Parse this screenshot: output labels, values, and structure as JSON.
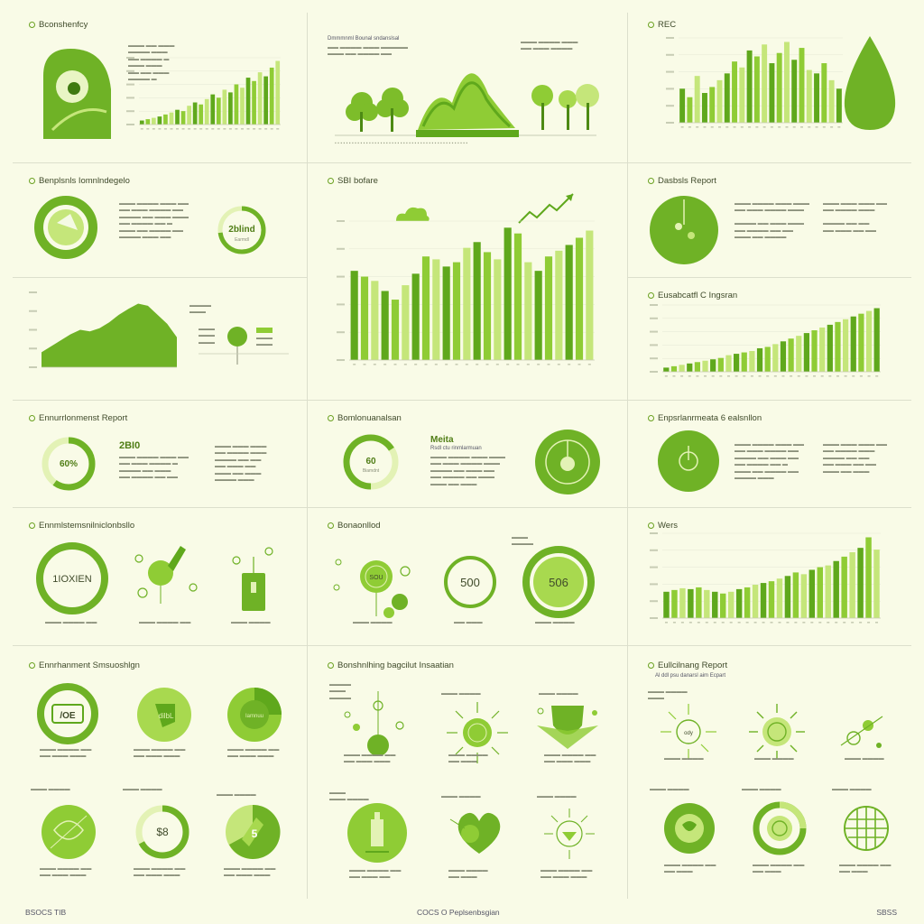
{
  "palette": {
    "dark": "#5fa81c",
    "mid": "#8fcc35",
    "light": "#c5e67a",
    "pale": "#e3f2b5",
    "bg": "#f9fbe7"
  },
  "titles": {
    "p1": "Bconshenfcy",
    "p3": "REC",
    "p4": "Benplsnls Iomnlndegelo",
    "p5": "SBI bofare",
    "p6": "Dasbsls Report",
    "p9": "Eusabcatfl C Ingsran",
    "p10": "Ennurrlonmenst Report",
    "p11": "Bomlonuanalsan",
    "p12": "Enpsrlanrmeata 6 ealsnllon",
    "p13": "Ennmlstemsnilniclonbsllo",
    "p14": "Bonaonllod",
    "p15": "Wers",
    "p16": "Ennrhanment Smsuoshlgn",
    "p17": "Bonshnlhing bagcilut Insaatian",
    "p18": "Eullcilnang Report"
  },
  "texts": {
    "p2_header": "Dmmmnml Bounal sndanslsal",
    "p10_num": "2BI0",
    "p10_ring": "60%",
    "p11_meta": "Meita",
    "p11_sub": "Rsdl ctu rinmlarmuan",
    "p11_ring": "60",
    "p11_ring_sub": "Biamdnt",
    "p4_ring": "2blind",
    "p4_ring_sub": "Earmdl",
    "p13_ring": "1IOXIEN",
    "p14_c1": "SOU",
    "p14_c2": "500",
    "p14_c3": "506",
    "p16_c1": "/OE",
    "p16_c2": "dilbL",
    "p16_c3": "Iamnuu",
    "p16_c4": "$8",
    "p16_c5": "5",
    "p18_sub": "Al ddl psu danarsl aim Ecpart",
    "p18_c1": "ody"
  },
  "footer": {
    "left": "BSOCS TIB",
    "center": "COCS O Peplsenbsgian",
    "right": "SBSS"
  },
  "chart_data": [
    {
      "id": "p1",
      "type": "bar",
      "values": [
        6,
        8,
        10,
        12,
        15,
        18,
        22,
        20,
        28,
        33,
        30,
        38,
        45,
        40,
        52,
        48,
        60,
        55,
        70,
        65,
        78,
        72,
        85,
        95
      ]
    },
    {
      "id": "p3",
      "type": "bar",
      "values": [
        40,
        30,
        55,
        35,
        42,
        50,
        58,
        72,
        65,
        85,
        78,
        92,
        70,
        82,
        95,
        74,
        88,
        62,
        58,
        70,
        50,
        40
      ]
    },
    {
      "id": "p5",
      "type": "bar",
      "values": [
        62,
        58,
        55,
        48,
        42,
        52,
        60,
        72,
        70,
        65,
        68,
        78,
        82,
        75,
        70,
        92,
        88,
        68,
        62,
        72,
        76,
        80,
        85,
        90
      ]
    },
    {
      "id": "p9",
      "type": "bar",
      "values": [
        6,
        8,
        10,
        12,
        14,
        16,
        18,
        20,
        24,
        26,
        28,
        30,
        34,
        36,
        40,
        44,
        48,
        52,
        56,
        60,
        64,
        68,
        72,
        76,
        80,
        84,
        88,
        92
      ]
    },
    {
      "id": "p15",
      "type": "bar",
      "values": [
        30,
        32,
        34,
        33,
        35,
        32,
        30,
        28,
        30,
        33,
        35,
        38,
        40,
        42,
        45,
        48,
        52,
        50,
        55,
        58,
        60,
        65,
        70,
        75,
        80,
        92,
        78
      ]
    },
    {
      "id": "p7",
      "type": "area",
      "values": [
        20,
        28,
        36,
        44,
        50,
        48,
        52,
        60,
        70,
        78,
        85,
        82,
        70,
        58,
        40
      ]
    }
  ]
}
